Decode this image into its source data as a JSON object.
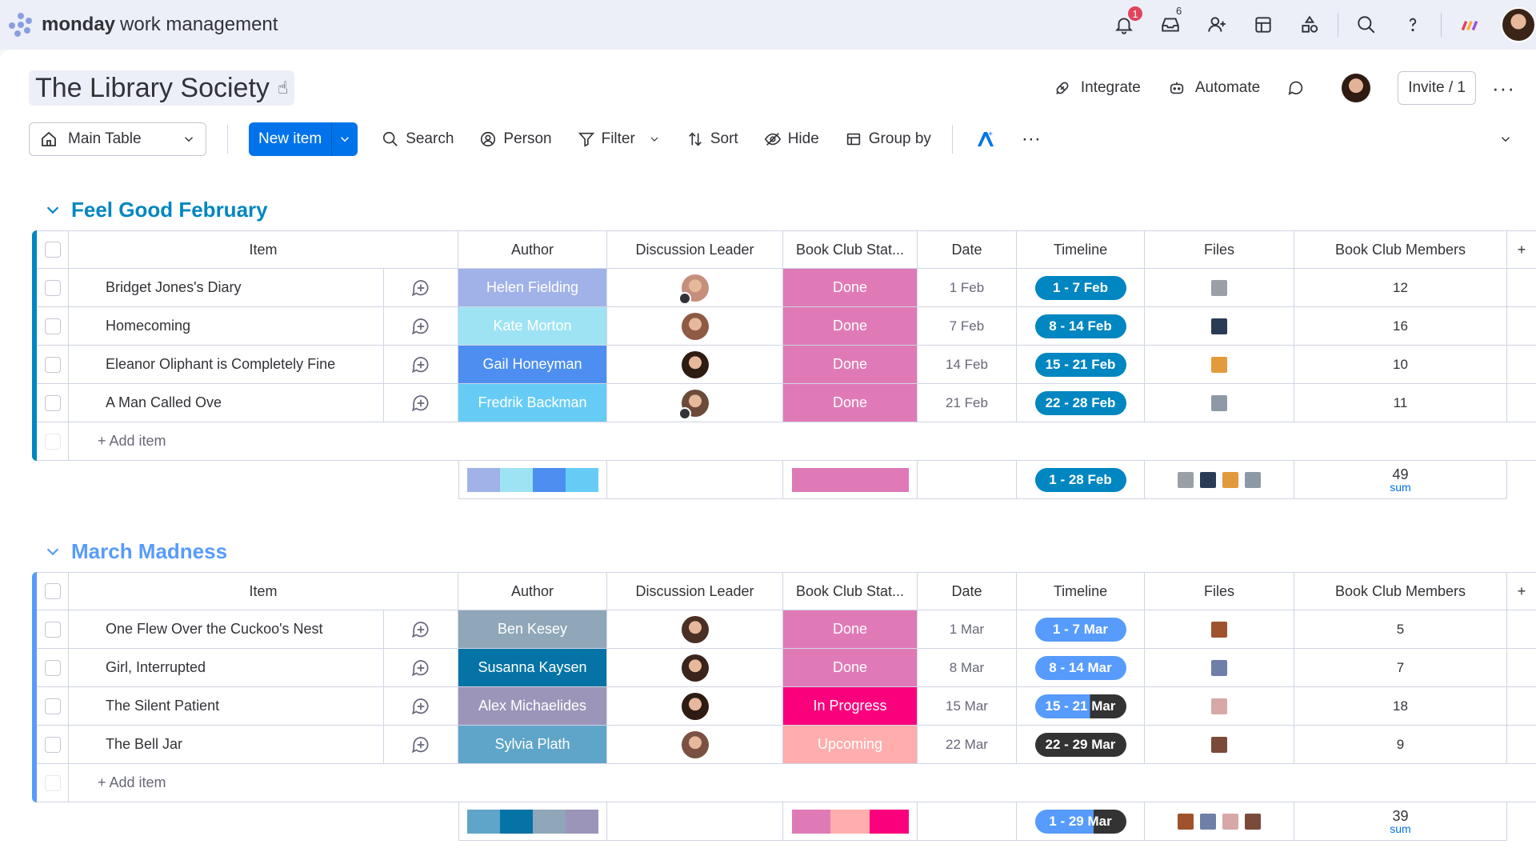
{
  "app": {
    "brand": "monday",
    "product": "work management"
  },
  "topbar": {
    "notifications_count": "1",
    "inbox_count": "6"
  },
  "board": {
    "title": "The Library Society"
  },
  "actions": {
    "integrate": "Integrate",
    "automate": "Automate",
    "invite": "Invite / 1"
  },
  "toolbar": {
    "view": "Main Table",
    "new_item": "New item",
    "search": "Search",
    "person": "Person",
    "filter": "Filter",
    "sort": "Sort",
    "hide": "Hide",
    "group_by": "Group by"
  },
  "columns": {
    "item": "Item",
    "author": "Author",
    "leader": "Discussion Leader",
    "status": "Book Club Stat...",
    "date": "Date",
    "timeline": "Timeline",
    "files": "Files",
    "members": "Book Club Members"
  },
  "add_item": "+ Add item",
  "sum_label": "sum",
  "colors": {
    "primary": "#0073ea",
    "done": "#e07ab7",
    "in_progress": "#fb007c",
    "upcoming": "#ffadad",
    "group1": "#0086c0",
    "group2": "#579bfc"
  },
  "groups": [
    {
      "title": "Feel Good February",
      "color": "#0086c0",
      "rows": [
        {
          "item": "Bridget Jones's Diary",
          "author": "Helen Fielding",
          "author_color": "#a1b2e8",
          "status": "Done",
          "status_color": "#e07ab7",
          "date": "1 Feb",
          "timeline": "1 - 7 Feb",
          "timeline_fill": 1.0,
          "members": "12",
          "face": "#c58f7c",
          "file_color": "#9aa0a6",
          "home": true
        },
        {
          "item": "Homecoming",
          "author": "Kate Morton",
          "author_color": "#9ee3f3",
          "status": "Done",
          "status_color": "#e07ab7",
          "date": "7 Feb",
          "timeline": "8 - 14 Feb",
          "timeline_fill": 1.0,
          "members": "16",
          "face": "#8e5a44",
          "file_color": "#2a3b55",
          "home": false
        },
        {
          "item": "Eleanor Oliphant is Completely Fine",
          "author": "Gail Honeyman",
          "author_color": "#4d8ef0",
          "status": "Done",
          "status_color": "#e07ab7",
          "date": "14 Feb",
          "timeline": "15 - 21 Feb",
          "timeline_fill": 1.0,
          "members": "10",
          "face": "#2e1b12",
          "file_color": "#e39a3d",
          "home": false
        },
        {
          "item": "A Man Called Ove",
          "author": "Fredrik Backman",
          "author_color": "#66ccf5",
          "status": "Done",
          "status_color": "#e07ab7",
          "date": "21 Feb",
          "timeline": "22 - 28 Feb",
          "timeline_fill": 1.0,
          "members": "11",
          "face": "#6b4a3a",
          "file_color": "#8e99a8",
          "home": true
        }
      ],
      "summary": {
        "timeline": "1 - 28 Feb",
        "timeline_fill": 1.0,
        "members": "49",
        "author_segments": [
          "#a1b2e8",
          "#9ee3f3",
          "#4d8ef0",
          "#66ccf5"
        ],
        "status_segments": [
          "#e07ab7"
        ],
        "files": [
          "#9aa0a6",
          "#2a3b55",
          "#e39a3d",
          "#8e99a8"
        ]
      }
    },
    {
      "title": "March Madness",
      "color": "#579bfc",
      "rows": [
        {
          "item": "One Flew Over the Cuckoo's Nest",
          "author": "Ben Kesey",
          "author_color": "#8fa7b8",
          "status": "Done",
          "status_color": "#e07ab7",
          "date": "1 Mar",
          "timeline": "1 - 7 Mar",
          "timeline_fill": 1.0,
          "members": "5",
          "face": "#4a2f24",
          "file_color": "#a0522d",
          "home": false
        },
        {
          "item": "Girl, Interrupted",
          "author": "Susanna Kaysen",
          "author_color": "#0573a5",
          "status": "Done",
          "status_color": "#e07ab7",
          "date": "8 Mar",
          "timeline": "8 - 14 Mar",
          "timeline_fill": 1.0,
          "members": "7",
          "face": "#3b241b",
          "file_color": "#6f7fa8",
          "home": false
        },
        {
          "item": "The Silent Patient",
          "author": "Alex Michaelides",
          "author_color": "#9b95ba",
          "status": "In Progress",
          "status_color": "#fb007c",
          "date": "15 Mar",
          "timeline": "15 - 21 Mar",
          "timeline_fill": 0.6,
          "members": "18",
          "face": "#2e1b12",
          "file_color": "#d8a7a7",
          "home": false
        },
        {
          "item": "The Bell Jar",
          "author": "Sylvia Plath",
          "author_color": "#5fa5c9",
          "status": "Upcoming",
          "status_color": "#ffadad",
          "date": "22 Mar",
          "timeline": "22 - 29 Mar",
          "timeline_fill": 0.0,
          "members": "9",
          "face": "#7a5142",
          "file_color": "#7a4a3a",
          "home": false
        }
      ],
      "summary": {
        "timeline": "1 - 29 Mar",
        "timeline_fill": 0.64,
        "members": "39",
        "author_segments": [
          "#5fa5c9",
          "#0573a5",
          "#8fa7b8",
          "#9b95ba"
        ],
        "status_segments": [
          "#e07ab7",
          "#ffadad",
          "#fb007c"
        ],
        "files": [
          "#a0522d",
          "#6f7fa8",
          "#d8a7a7",
          "#7a4a3a"
        ]
      }
    }
  ]
}
